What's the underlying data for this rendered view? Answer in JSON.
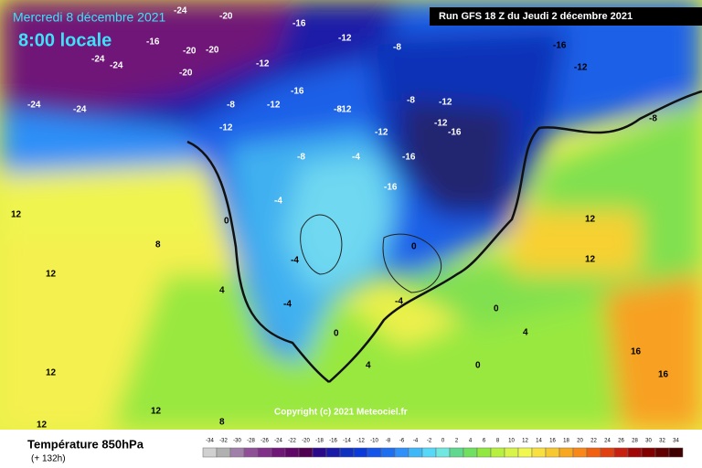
{
  "header": {
    "date": "Mercredi 8 décembre 2021",
    "time": "8:00 locale",
    "run": "Run GFS 18 Z du Jeudi 2 décembre 2021"
  },
  "copyright": "Copyright (c) 2021 Meteociel.fr",
  "legend": {
    "title": "Température 850hPa",
    "subtitle": "(+ 132h)",
    "labels": [
      -34,
      -32,
      -30,
      -28,
      -26,
      -24,
      -22,
      -20,
      -18,
      -16,
      -14,
      -12,
      -10,
      -8,
      -6,
      -4,
      -2,
      0,
      2,
      4,
      6,
      8,
      10,
      12,
      14,
      16,
      18,
      20,
      22,
      24,
      26,
      28,
      30,
      32,
      34
    ],
    "colors": [
      "#d0d0d0",
      "#b0b0b0",
      "#a080a8",
      "#905098",
      "#803088",
      "#701878",
      "#600868",
      "#500050",
      "#2a0a8a",
      "#1a1aa8",
      "#1030c0",
      "#0a3ad8",
      "#1454e8",
      "#1e6ef0",
      "#2e90f8",
      "#40b8f8",
      "#58d8f8",
      "#70e8e0",
      "#60d890",
      "#70e060",
      "#90e840",
      "#b8f040",
      "#d8f448",
      "#f0f850",
      "#f8e040",
      "#f8c830",
      "#f8a820",
      "#f88818",
      "#f06010",
      "#e04010",
      "#c82010",
      "#a00808",
      "#800000",
      "#600000",
      "#400000"
    ]
  },
  "map_labels": [
    "-24",
    "-20",
    "-24",
    "-16",
    "-20",
    "-24",
    "-20",
    "-20",
    "-24",
    "-24",
    "-12",
    "-16",
    "-12",
    "-12",
    "-8",
    "-16",
    "-12",
    "-8",
    "-12",
    "-16",
    "-12",
    "-8",
    "-8",
    "-12",
    "-8",
    "-4",
    "-16",
    "-16",
    "-12",
    "-16",
    "-12",
    "-8",
    "-4",
    "0",
    "-4",
    "-4",
    "0",
    "0",
    "0",
    "4",
    "4",
    "4",
    "8",
    "8",
    "12",
    "12",
    "12",
    "12",
    "12",
    "16",
    "16",
    "12",
    "12",
    "0",
    "-4"
  ]
}
